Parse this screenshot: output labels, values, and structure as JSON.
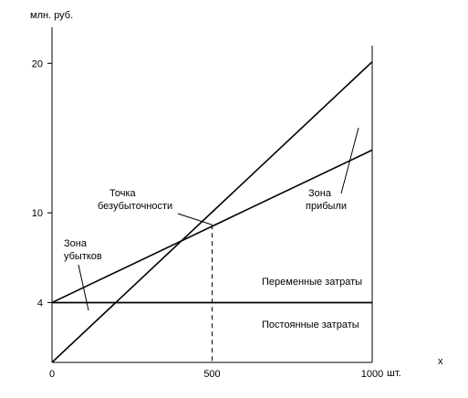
{
  "chart_data": {
    "type": "line",
    "ylabel": "млн. руб.",
    "xlabel_unit": "шт.",
    "xlabel_var": "x",
    "xlim": [
      0,
      1000
    ],
    "ylim": [
      0,
      22.4
    ],
    "x_ticks": [
      0,
      500,
      1000
    ],
    "y_ticks": [
      4,
      10,
      20
    ],
    "series": [
      {
        "name": "Постоянные затраты",
        "x": [
          0,
          1000
        ],
        "y": [
          4,
          4
        ]
      },
      {
        "name": "",
        "x": [
          0,
          1000
        ],
        "y": [
          4,
          14.2
        ]
      },
      {
        "name": "",
        "x": [
          0,
          1000
        ],
        "y": [
          0,
          20.1
        ]
      }
    ],
    "annotations": [
      {
        "text": "Точка безубыточности",
        "x": 500,
        "y": 9.2
      },
      {
        "text": "Зона прибыли"
      },
      {
        "text": "Зона убытков"
      },
      {
        "text": "Переменные затраты"
      },
      {
        "text": "Постоянные затраты"
      }
    ],
    "labels": {
      "breakeven": [
        "Точка",
        "безубыточности"
      ],
      "profit": [
        "Зона",
        "прибыли"
      ],
      "loss": [
        "Зона",
        "убытков"
      ],
      "variable": "Переменные затраты",
      "fixed": "Постоянные затраты"
    },
    "colors": {
      "line": "#000000",
      "background": "#ffffff"
    }
  }
}
